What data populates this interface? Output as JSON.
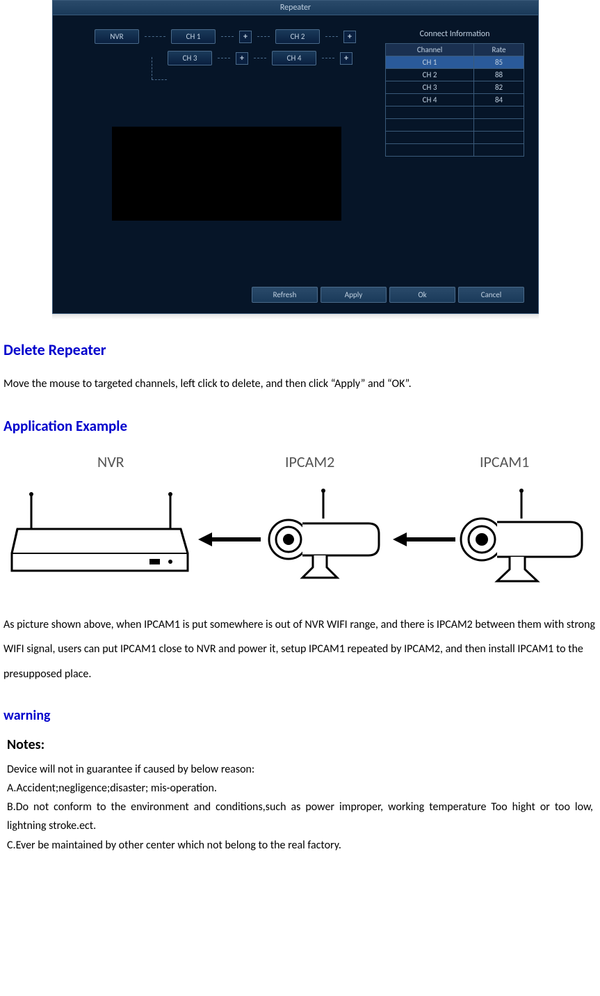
{
  "repeater": {
    "title": "Repeater",
    "nvr_label": "NVR",
    "channels": [
      {
        "label": "CH 1"
      },
      {
        "label": "CH 2"
      },
      {
        "label": "CH 3"
      },
      {
        "label": "CH 4"
      }
    ],
    "conn_info": {
      "title": "Connect Information",
      "col_channel": "Channel",
      "col_rate": "Rate",
      "rows": [
        {
          "ch": "CH 1",
          "rate": "85",
          "selected": true
        },
        {
          "ch": "CH 2",
          "rate": "88"
        },
        {
          "ch": "CH 3",
          "rate": "82"
        },
        {
          "ch": "CH 4",
          "rate": "84"
        }
      ]
    },
    "buttons": {
      "refresh": "Refresh",
      "apply": "Apply",
      "ok": "Ok",
      "cancel": "Cancel"
    },
    "colors": {
      "window_bg": "#061528",
      "border": "#3a5a7a",
      "button_grad_top": "#2a4a6a",
      "button_grad_bottom": "#1a3a5a",
      "text": "#c0d0e0",
      "selected_row": "#2a5a9a"
    }
  },
  "doc": {
    "delete_heading": "Delete Repeater",
    "delete_para": "Move the mouse to targeted channels, left click to delete, and then click “Apply” and “OK”.",
    "app_heading": "Application Example",
    "diagram": {
      "nvr_label": "NVR",
      "cam2_label": "IPCAM2",
      "cam1_label": "IPCAM1"
    },
    "app_para": "As picture shown above, when IPCAM1 is put somewhere is out of NVR WIFI range, and there is IPCAM2 between them with strong WIFI signal, users can put IPCAM1 close to NVR and power it, setup IPCAM1 repeated by IPCAM2, and then install IPCAM1 to the presupposed place.",
    "warning_heading": "warning",
    "notes_label": "Notes:",
    "notes_body": "Device will not in guarantee if caused by below reason:\nA.Accident;negligence;disaster; mis-operation.\nB.Do not conform to the environment and conditions,such as power improper, working temperature Too hight or too low, lightning stroke.ect.\nC.Ever be maintained by other center which not belong to the real factory.",
    "heading_color": "#0000cc"
  }
}
